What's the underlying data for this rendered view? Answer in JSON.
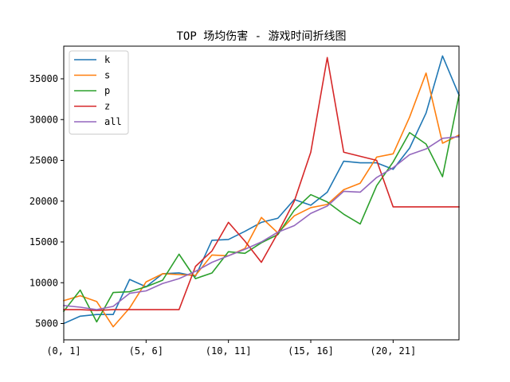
{
  "chart_data": {
    "type": "line",
    "title": "TOP 场均伤害 - 游戏时间折线图",
    "xlabel": "",
    "ylabel": "",
    "x_ticks": [
      "(0, 1]",
      "(5, 6]",
      "(10, 11]",
      "(15, 16]",
      "(20, 21]"
    ],
    "x_tick_positions": [
      0,
      5,
      10,
      15,
      20
    ],
    "xlim": [
      0,
      24
    ],
    "ylim": [
      3000,
      39000
    ],
    "y_ticks": [
      5000,
      10000,
      15000,
      20000,
      25000,
      30000,
      35000
    ],
    "grid": false,
    "legend_position": "top-left",
    "x": [
      0,
      1,
      2,
      3,
      4,
      5,
      6,
      7,
      8,
      9,
      10,
      11,
      12,
      13,
      14,
      15,
      16,
      17,
      18,
      19,
      20,
      21,
      22,
      23,
      24
    ],
    "series": [
      {
        "name": "k",
        "color": "#1f77b4",
        "values": [
          5000,
          5900,
          6100,
          6100,
          10400,
          9500,
          11100,
          11200,
          10800,
          15200,
          15300,
          16300,
          17400,
          17900,
          20200,
          19500,
          21100,
          24900,
          24700,
          24700,
          23900,
          26500,
          30800,
          37800,
          33000
        ]
      },
      {
        "name": "s",
        "color": "#ff7f0e",
        "values": [
          7800,
          8400,
          7700,
          4600,
          6900,
          10100,
          11100,
          11000,
          10900,
          13400,
          13300,
          14200,
          18000,
          16100,
          18200,
          19200,
          19600,
          21400,
          22200,
          25400,
          25800,
          30300,
          35700,
          27100,
          28100
        ]
      },
      {
        "name": "p",
        "color": "#2ca02c",
        "values": [
          6500,
          9100,
          5200,
          8800,
          8900,
          9500,
          10300,
          13500,
          10500,
          11200,
          13800,
          13600,
          14900,
          15900,
          18900,
          20800,
          19900,
          18400,
          17200,
          21900,
          24800,
          28400,
          27000,
          23000,
          33000
        ]
      },
      {
        "name": "z",
        "color": "#d62728",
        "values": [
          6700,
          6700,
          6600,
          6700,
          6700,
          6700,
          6700,
          6700,
          12000,
          13900,
          17400,
          15100,
          12500,
          16100,
          20000,
          26000,
          37600,
          26000,
          25500,
          25000,
          19300,
          19300,
          19300,
          19300,
          19300
        ]
      },
      {
        "name": "all",
        "color": "#9467bd",
        "values": [
          7200,
          7000,
          6700,
          7100,
          8700,
          9000,
          9900,
          10500,
          11400,
          12500,
          13300,
          14100,
          15000,
          16200,
          17000,
          18500,
          19400,
          21200,
          21100,
          22900,
          24100,
          25700,
          26400,
          27700,
          27900
        ]
      }
    ]
  }
}
